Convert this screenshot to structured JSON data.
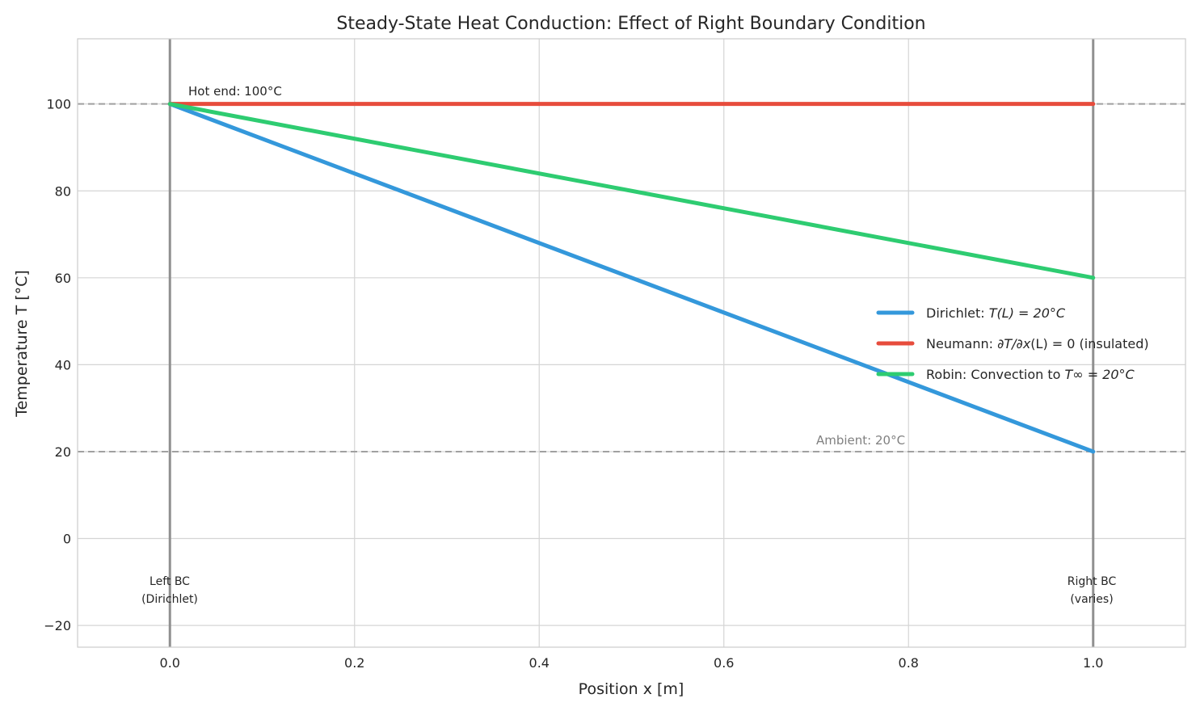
{
  "chart_data": {
    "type": "line",
    "title": "Steady-State Heat Conduction: Effect of Right Boundary Condition",
    "xlabel": "Position x [m]",
    "ylabel": "Temperature T [°C]",
    "xlim": [
      -0.1,
      1.1
    ],
    "ylim": [
      -25,
      115
    ],
    "xticks": [
      0.0,
      0.2,
      0.4,
      0.6,
      0.8,
      1.0
    ],
    "xtick_labels": [
      "0.0",
      "0.2",
      "0.4",
      "0.6",
      "0.8",
      "1.0"
    ],
    "yticks": [
      -20,
      0,
      20,
      40,
      60,
      80,
      100
    ],
    "ytick_labels": [
      "−20",
      "0",
      "20",
      "40",
      "60",
      "80",
      "100"
    ],
    "grid": true,
    "legend_placement": "center-right",
    "series": [
      {
        "name": "Dirichlet: T(L) = 20°C",
        "color": "#3498db",
        "x": [
          0,
          1
        ],
        "y": [
          100,
          20
        ]
      },
      {
        "name": "Neumann: ∂T/∂x(L) = 0 (insulated)",
        "color": "#e74c3c",
        "x": [
          0,
          1
        ],
        "y": [
          100,
          100
        ]
      },
      {
        "name": "Robin: Convection to T∞ = 20°C",
        "color": "#2ecc71",
        "x": [
          0,
          1
        ],
        "y": [
          100,
          60
        ]
      }
    ],
    "reference_lines": {
      "horizontal": [
        {
          "y": 100,
          "style": "dashed"
        },
        {
          "y": 20,
          "style": "dashed"
        }
      ],
      "vertical": [
        {
          "x": 0
        },
        {
          "x": 1
        }
      ]
    },
    "annotations": {
      "hot_end": "Hot end: 100°C",
      "ambient": "Ambient: 20°C",
      "left_bc_line1": "Left BC",
      "left_bc_line2": "(Dirichlet)",
      "right_bc_line1": "Right BC",
      "right_bc_line2": "(varies)"
    }
  }
}
